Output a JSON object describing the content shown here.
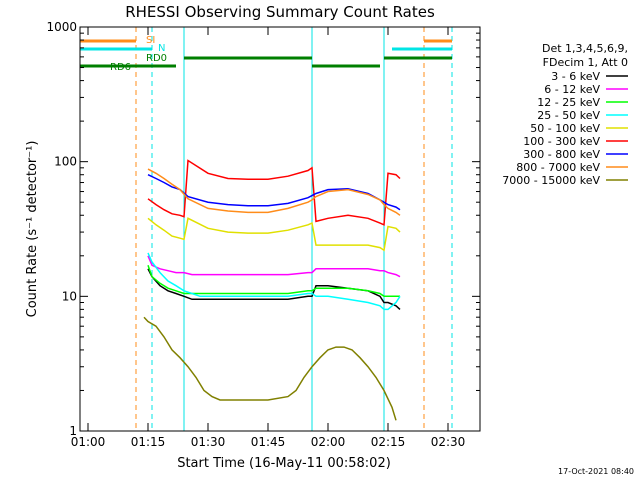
{
  "colors": {
    "background": "#ffffff",
    "axis": "#000000",
    "saa": "#ff8c1a",
    "night": "#00e5e5",
    "flag_line": "#007f00"
  },
  "flags": {
    "saa_label": "SI",
    "night_label": "N",
    "rd0_label": "RD0",
    "rd6_label": "RD6"
  },
  "footer_date": "17-Oct-2021 08:40",
  "chart_data": {
    "type": "line",
    "title": "RHESSI Observing Summary Count Rates",
    "xlabel": "Start Time (16-May-11 00:58:02)",
    "ylabel": "Count Rate (s⁻¹ detector⁻¹)",
    "ylog": true,
    "ylim": [
      1,
      1000
    ],
    "xlim": [
      "00:58",
      "02:38"
    ],
    "x_ticks": [
      "01:00",
      "01:15",
      "01:30",
      "01:45",
      "02:00",
      "02:15",
      "02:30"
    ],
    "y_ticks": [
      "1",
      "10",
      "100",
      "1000"
    ],
    "legend_header": [
      "Det 1,3,4,5,6,9,",
      "FDecim 1, Att 0"
    ],
    "legend_position": "right",
    "series": [
      {
        "name": "3 - 6 keV",
        "color": "#000000",
        "x": [
          "01:15",
          "01:16",
          "01:18",
          "01:20",
          "01:22",
          "01:24",
          "01:26",
          "01:28",
          "01:30",
          "01:35",
          "01:40",
          "01:45",
          "01:50",
          "01:55",
          "01:56",
          "01:57",
          "02:00",
          "02:05",
          "02:10",
          "02:13",
          "02:14",
          "02:15",
          "02:17",
          "02:18"
        ],
        "y": [
          16,
          14,
          12,
          11,
          10.5,
          10,
          9.5,
          9.5,
          9.5,
          9.5,
          9.5,
          9.5,
          9.5,
          10,
          10,
          12,
          12,
          11.5,
          11,
          10,
          9,
          9,
          8.5,
          8
        ]
      },
      {
        "name": "6 - 12 keV",
        "color": "#ff00ff",
        "x": [
          "01:15",
          "01:16",
          "01:18",
          "01:20",
          "01:22",
          "01:24",
          "01:26",
          "01:28",
          "01:30",
          "01:35",
          "01:40",
          "01:45",
          "01:50",
          "01:55",
          "01:56",
          "01:57",
          "02:00",
          "02:05",
          "02:10",
          "02:13",
          "02:14",
          "02:15",
          "02:17",
          "02:18"
        ],
        "y": [
          20,
          17,
          16,
          15.5,
          15,
          15,
          14.5,
          14.5,
          14.5,
          14.5,
          14.5,
          14.5,
          14.5,
          15,
          15,
          16,
          16,
          16,
          16,
          15.5,
          15.5,
          15,
          14.5,
          14
        ]
      },
      {
        "name": "12 - 25 keV",
        "color": "#00ff00",
        "x": [
          "01:15",
          "01:16",
          "01:18",
          "01:20",
          "01:22",
          "01:24",
          "01:26",
          "01:28",
          "01:30",
          "01:35",
          "01:40",
          "01:45",
          "01:50",
          "01:55",
          "01:56",
          "01:57",
          "02:00",
          "02:05",
          "02:10",
          "02:13",
          "02:14",
          "02:15",
          "02:17",
          "02:18"
        ],
        "y": [
          17,
          14,
          12.5,
          11.5,
          11,
          10.5,
          10.5,
          10.5,
          10.5,
          10.5,
          10.5,
          10.5,
          10.5,
          11,
          11,
          11.5,
          11.5,
          11.5,
          11,
          10.5,
          10,
          10,
          10,
          10
        ]
      },
      {
        "name": "25 - 50 keV",
        "color": "#00ffff",
        "x": [
          "01:15",
          "01:16",
          "01:18",
          "01:20",
          "01:22",
          "01:24",
          "01:26",
          "01:28",
          "01:30",
          "01:35",
          "01:40",
          "01:45",
          "01:50",
          "01:55",
          "01:56",
          "01:57",
          "02:00",
          "02:05",
          "02:10",
          "02:13",
          "02:14",
          "02:15",
          "02:17",
          "02:18"
        ],
        "y": [
          21,
          18,
          15,
          13,
          12,
          11,
          10.5,
          10,
          10,
          10,
          10,
          10,
          10,
          10.5,
          10.5,
          10,
          10,
          9.5,
          9,
          8.5,
          8,
          8,
          9,
          10
        ]
      },
      {
        "name": "50 - 100 keV",
        "color": "#e0e000",
        "x": [
          "01:15",
          "01:17",
          "01:19",
          "01:21",
          "01:23",
          "01:24",
          "01:25",
          "01:30",
          "01:35",
          "01:40",
          "01:45",
          "01:50",
          "01:55",
          "01:56",
          "01:57",
          "02:00",
          "02:05",
          "02:10",
          "02:13",
          "02:14",
          "02:15",
          "02:17",
          "02:18"
        ],
        "y": [
          38,
          34,
          31,
          28,
          27,
          26.5,
          38,
          32,
          30,
          29.5,
          29.5,
          31,
          34,
          35,
          24,
          24,
          24,
          24,
          23,
          22,
          33,
          32,
          30
        ]
      },
      {
        "name": "100 - 300 keV",
        "color": "#ff0000",
        "x": [
          "01:15",
          "01:17",
          "01:19",
          "01:21",
          "01:23",
          "01:24",
          "01:25",
          "01:30",
          "01:35",
          "01:40",
          "01:45",
          "01:50",
          "01:55",
          "01:56",
          "01:57",
          "02:00",
          "02:05",
          "02:10",
          "02:13",
          "02:14",
          "02:15",
          "02:17",
          "02:18"
        ],
        "y": [
          53,
          48,
          44,
          41,
          40,
          39,
          102,
          82,
          75,
          74,
          74,
          78,
          86,
          90,
          36,
          38,
          40,
          38,
          35,
          34,
          82,
          80,
          75
        ]
      },
      {
        "name": "300 - 800 keV",
        "color": "#0000ff",
        "x": [
          "01:15",
          "01:17",
          "01:19",
          "01:21",
          "01:23",
          "01:25",
          "01:30",
          "01:35",
          "01:40",
          "01:45",
          "01:50",
          "01:55",
          "01:56",
          "01:57",
          "02:00",
          "02:05",
          "02:10",
          "02:13",
          "02:14",
          "02:15",
          "02:17",
          "02:18"
        ],
        "y": [
          80,
          75,
          70,
          65,
          62,
          55,
          50,
          48,
          47,
          47,
          49,
          54,
          56,
          58,
          62,
          63,
          58,
          52,
          50,
          48,
          46,
          44
        ]
      },
      {
        "name": "800 - 7000 keV",
        "color": "#ff8c1a",
        "x": [
          "01:15",
          "01:17",
          "01:19",
          "01:21",
          "01:23",
          "01:25",
          "01:30",
          "01:35",
          "01:40",
          "01:45",
          "01:50",
          "01:55",
          "01:56",
          "01:57",
          "02:00",
          "02:05",
          "02:10",
          "02:13",
          "02:14",
          "02:15",
          "02:17",
          "02:18"
        ],
        "y": [
          88,
          82,
          75,
          68,
          62,
          53,
          45,
          43,
          42,
          42,
          45,
          50,
          52,
          55,
          60,
          62,
          57,
          52,
          48,
          45,
          42,
          40
        ]
      },
      {
        "name": "7000 - 15000 keV",
        "color": "#808000",
        "x": [
          "01:14",
          "01:15",
          "01:17",
          "01:19",
          "01:21",
          "01:23",
          "01:25",
          "01:27",
          "01:29",
          "01:31",
          "01:33",
          "01:35",
          "01:40",
          "01:45",
          "01:50",
          "01:52",
          "01:54",
          "01:56",
          "01:58",
          "02:00",
          "02:02",
          "02:04",
          "02:06",
          "02:08",
          "02:10",
          "02:12",
          "02:14",
          "02:16",
          "02:17"
        ],
        "y": [
          7,
          6.5,
          6,
          5,
          4,
          3.5,
          3,
          2.5,
          2,
          1.8,
          1.7,
          1.7,
          1.7,
          1.7,
          1.8,
          2,
          2.5,
          3,
          3.5,
          4,
          4.2,
          4.2,
          4,
          3.5,
          3,
          2.5,
          2,
          1.5,
          1.2
        ]
      }
    ],
    "saa_intervals": [
      [
        "00:58",
        "01:12"
      ],
      [
        "02:24",
        "02:31"
      ]
    ],
    "night_intervals": [
      [
        "00:58",
        "01:16"
      ],
      [
        "02:16",
        "02:31"
      ]
    ],
    "rd0_segments": [
      [
        "01:24",
        "01:56"
      ],
      [
        "02:14",
        "02:31"
      ]
    ],
    "rd6_segments": [
      [
        "00:58",
        "01:22"
      ],
      [
        "01:56",
        "02:13"
      ]
    ],
    "saa_markers": [
      "01:12",
      "02:24"
    ],
    "night_markers": [
      "01:16",
      "02:31"
    ],
    "step_markers": [
      "01:24",
      "01:56",
      "02:14"
    ]
  }
}
